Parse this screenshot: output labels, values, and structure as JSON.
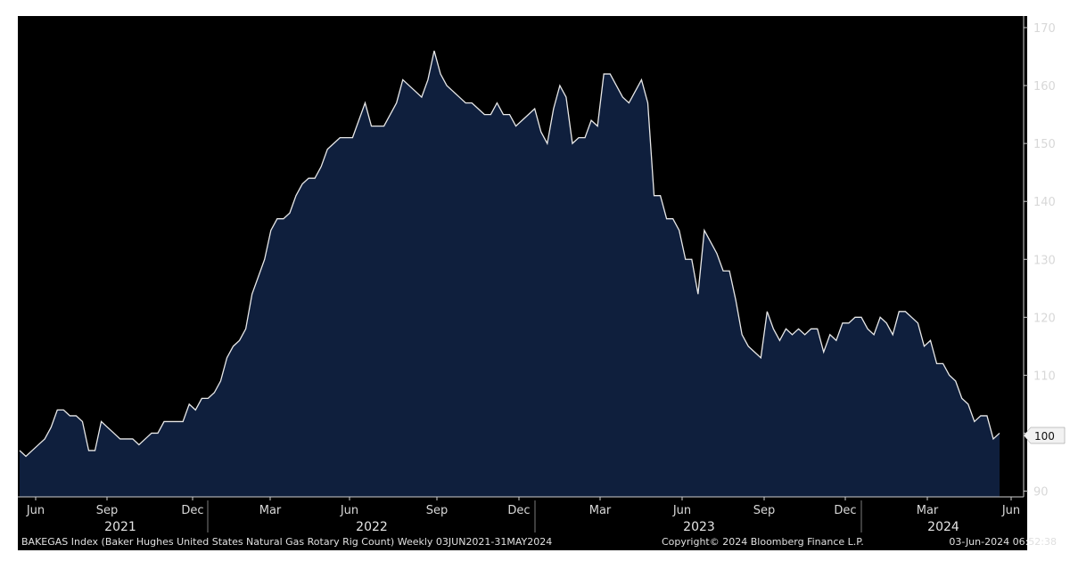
{
  "chart_data": {
    "type": "area",
    "x_tick_labels": [
      "Jun",
      "Sep",
      "Dec",
      "Mar",
      "Jun",
      "Sep",
      "Dec",
      "Mar",
      "Jun",
      "Sep",
      "Dec",
      "Mar",
      "Jun"
    ],
    "year_labels": [
      "2021",
      "2022",
      "2023",
      "2024"
    ],
    "y_tick_labels": [
      "90",
      "100",
      "110",
      "120",
      "130",
      "140",
      "150",
      "160",
      "170"
    ],
    "ylim": [
      89,
      172
    ],
    "last_value_label": "100",
    "values": [
      97,
      96,
      97,
      98,
      99,
      101,
      104,
      104,
      103,
      103,
      102,
      97,
      97,
      102,
      101,
      100,
      99,
      99,
      99,
      98,
      99,
      100,
      100,
      102,
      102,
      102,
      102,
      105,
      104,
      106,
      106,
      107,
      109,
      113,
      115,
      116,
      118,
      124,
      127,
      130,
      135,
      137,
      137,
      138,
      141,
      143,
      144,
      144,
      146,
      149,
      150,
      151,
      151,
      151,
      154,
      157,
      153,
      153,
      153,
      155,
      157,
      161,
      160,
      159,
      158,
      161,
      166,
      162,
      160,
      159,
      158,
      157,
      157,
      156,
      155,
      155,
      157,
      155,
      155,
      153,
      154,
      155,
      156,
      152,
      150,
      156,
      160,
      158,
      150,
      151,
      151,
      154,
      153,
      162,
      162,
      160,
      158,
      157,
      159,
      161,
      157,
      141,
      141,
      137,
      137,
      135,
      130,
      130,
      124,
      135,
      133,
      131,
      128,
      128,
      123,
      117,
      115,
      114,
      113,
      121,
      118,
      116,
      118,
      117,
      118,
      117,
      118,
      118,
      114,
      117,
      116,
      119,
      119,
      120,
      120,
      118,
      117,
      120,
      119,
      117,
      121,
      121,
      120,
      119,
      115,
      116,
      112,
      112,
      110,
      109,
      106,
      105,
      102,
      103,
      103,
      99,
      100
    ],
    "series": [
      {
        "name": "BAKEGAS Index (Baker Hughes United States Natural Gas Rotary Rig Count)"
      }
    ],
    "footer_left": "BAKEGAS Index (Baker Hughes United States Natural Gas Rotary Rig Count)  Weekly 03JUN2021-31MAY2024",
    "footer_center": "Copyright© 2024 Bloomberg Finance L.P.",
    "footer_right": "03-Jun-2024 06:52:38",
    "colors": {
      "background": "#000000",
      "area_fill": "#0f1f3d",
      "line": "#e8e8e8",
      "text": "#d8d8d8",
      "grid_axis": "#cfcfcf"
    }
  }
}
